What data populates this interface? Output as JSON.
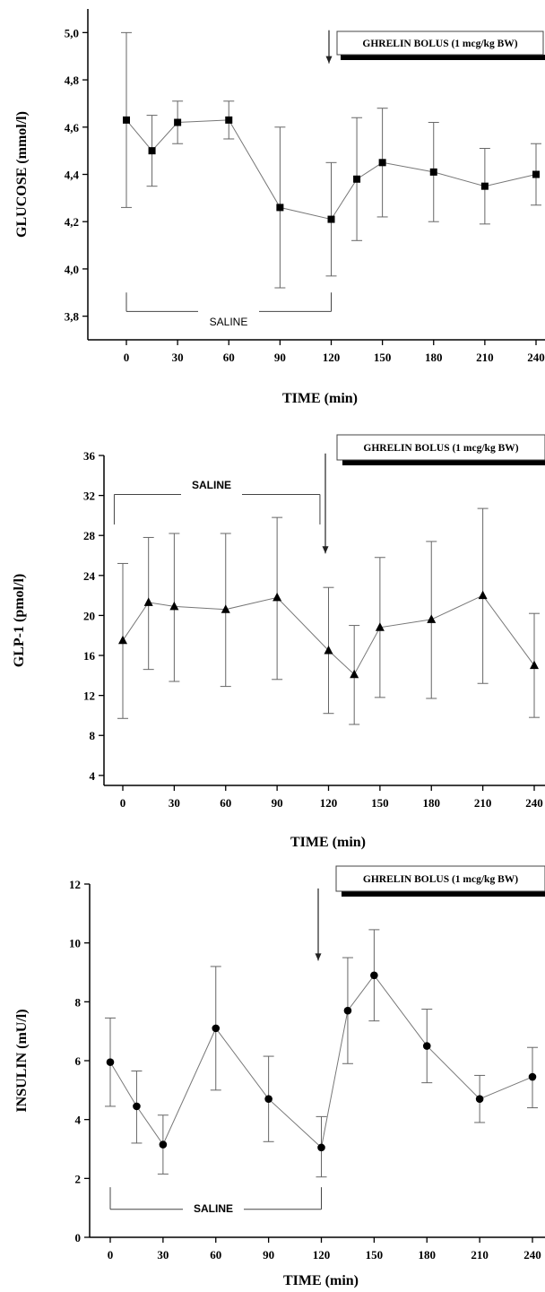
{
  "chart_data": [
    {
      "type": "line",
      "ylabel": "GLUCOSE (mmol/l)",
      "xlabel": "TIME (min)",
      "x_ticks": [
        0,
        30,
        60,
        90,
        120,
        150,
        180,
        210,
        240
      ],
      "x_tick_labels": [
        "0",
        "30",
        "60",
        "90",
        "120",
        "150",
        "180",
        "210",
        "240"
      ],
      "xlim": [
        -25,
        240
      ],
      "ylim": [
        3.7,
        5.1
      ],
      "y_ticks": [
        3.8,
        4.0,
        4.2,
        4.4,
        4.6,
        4.8,
        5.0
      ],
      "y_tick_labels": [
        "3,8",
        "4,0",
        "4,2",
        "4,4",
        "4,6",
        "4,8",
        "5,0"
      ],
      "marker": "square",
      "series": [
        {
          "x": [
            0,
            15,
            30,
            60,
            90,
            120,
            135,
            150,
            180,
            210,
            240
          ],
          "values": [
            4.63,
            4.5,
            4.62,
            4.63,
            4.26,
            4.21,
            4.38,
            4.45,
            4.41,
            4.35,
            4.4
          ],
          "err_low": [
            4.26,
            4.35,
            4.53,
            4.55,
            3.92,
            3.97,
            4.12,
            4.22,
            4.2,
            4.19,
            4.27
          ],
          "err_high": [
            5.0,
            4.65,
            4.71,
            4.71,
            4.6,
            4.45,
            4.64,
            4.68,
            4.62,
            4.51,
            4.53
          ]
        }
      ],
      "bolus_label": "GHRELIN BOLUS (1 mcg/kg BW)",
      "bolus_x": 120,
      "saline_label": "SALINE",
      "saline_range": [
        0,
        120
      ],
      "saline_bracket_y": [
        3.9,
        3.82
      ],
      "arrow_y": [
        5.01,
        4.87
      ]
    },
    {
      "type": "line",
      "ylabel": "GLP-1 (pmol/l)",
      "xlabel": "TIME (min)",
      "x_ticks": [
        0,
        30,
        60,
        90,
        120,
        150,
        180,
        210,
        240
      ],
      "x_tick_labels": [
        "0",
        "30",
        "60",
        "90",
        "120",
        "150",
        "180",
        "210",
        "240"
      ],
      "xlim": [
        -25,
        240
      ],
      "ylim": [
        3,
        36
      ],
      "y_ticks": [
        4,
        8,
        12,
        16,
        20,
        24,
        28,
        32,
        36
      ],
      "y_tick_labels": [
        "4",
        "8",
        "12",
        "16",
        "20",
        "24",
        "28",
        "32",
        "36"
      ],
      "marker": "triangle",
      "series": [
        {
          "x": [
            0,
            15,
            30,
            60,
            90,
            120,
            135,
            150,
            180,
            210,
            240
          ],
          "values": [
            17.5,
            21.3,
            20.9,
            20.6,
            21.8,
            16.5,
            14.1,
            18.8,
            19.6,
            22.0,
            15.0
          ],
          "err_low": [
            9.7,
            14.6,
            13.4,
            12.9,
            13.6,
            10.2,
            9.1,
            11.8,
            11.7,
            13.2,
            9.8
          ],
          "err_high": [
            25.2,
            27.8,
            28.2,
            28.2,
            29.8,
            22.8,
            19.0,
            25.8,
            27.4,
            30.7,
            20.2
          ]
        }
      ],
      "bolus_label": "GHRELIN BOLUS (1 mcg/kg BW)",
      "bolus_x": 120,
      "saline_label": "SALINE",
      "saline_range": [
        -5,
        115
      ],
      "saline_bracket_y": [
        29.1,
        32.1
      ],
      "arrow_y": [
        36.2,
        26.2
      ]
    },
    {
      "type": "line",
      "ylabel": "INSULIN (mU/l)",
      "xlabel": "TIME (min)",
      "x_ticks": [
        0,
        30,
        60,
        90,
        120,
        150,
        180,
        210,
        240
      ],
      "x_tick_labels": [
        "0",
        "30",
        "60",
        "90",
        "120",
        "150",
        "180",
        "210",
        "240"
      ],
      "xlim": [
        -15,
        240
      ],
      "ylim": [
        0,
        12
      ],
      "y_ticks": [
        0,
        2,
        4,
        6,
        8,
        10,
        12
      ],
      "y_tick_labels": [
        "0",
        "2",
        "4",
        "6",
        "8",
        "10",
        "12"
      ],
      "marker": "circle",
      "series": [
        {
          "x": [
            0,
            15,
            30,
            60,
            90,
            120,
            135,
            150,
            180,
            210,
            240
          ],
          "values": [
            5.95,
            4.45,
            3.15,
            7.1,
            4.7,
            3.05,
            7.7,
            8.9,
            6.5,
            4.7,
            5.45
          ],
          "err_low": [
            4.45,
            3.2,
            2.15,
            5.0,
            3.25,
            2.05,
            5.9,
            7.35,
            5.25,
            3.9,
            4.4
          ],
          "err_high": [
            7.45,
            5.65,
            4.15,
            9.2,
            6.15,
            4.1,
            9.5,
            10.45,
            7.75,
            5.5,
            6.45
          ]
        }
      ],
      "bolus_label": "GHRELIN BOLUS (1 mcg/kg BW)",
      "bolus_x": 120,
      "saline_label": "SALINE",
      "saline_range": [
        0,
        120
      ],
      "saline_bracket_y": [
        1.7,
        0.95
      ],
      "arrow_y": [
        11.85,
        9.4
      ]
    }
  ]
}
